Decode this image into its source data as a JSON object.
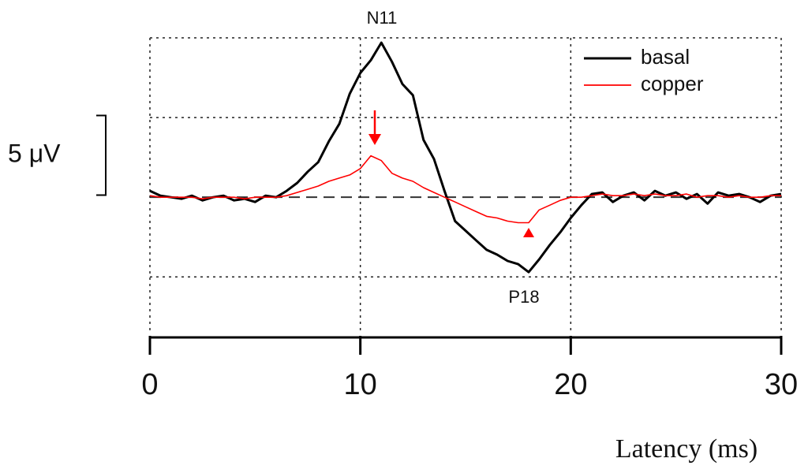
{
  "chart_data": {
    "type": "line",
    "x_label": "Latency (ms)",
    "xlim": [
      0,
      30
    ],
    "xticks": [
      0,
      10,
      20,
      30
    ],
    "ylim": [
      -8.4,
      10
    ],
    "y_gridlines": [
      -5,
      0,
      5,
      10
    ],
    "grid": true,
    "scale_bar": {
      "value": 5,
      "label": "5 μV"
    },
    "annotations": [
      "N11",
      "P18"
    ],
    "legend": "upper right",
    "x": [
      0,
      0.5,
      1,
      1.5,
      2,
      2.5,
      3,
      3.5,
      4,
      4.5,
      5,
      5.5,
      6,
      6.5,
      7,
      7.5,
      8,
      8.5,
      9,
      9.5,
      10,
      10.5,
      11,
      11.5,
      12,
      12.5,
      13,
      13.5,
      14,
      14.5,
      15,
      15.5,
      16,
      16.5,
      17,
      17.5,
      18,
      18.5,
      19,
      19.5,
      20,
      20.5,
      21,
      21.5,
      22,
      22.5,
      23,
      23.5,
      24,
      24.5,
      25,
      25.5,
      26,
      26.5,
      27,
      27.5,
      28,
      28.5,
      29,
      29.5,
      30
    ],
    "series": [
      {
        "name": "basal",
        "color": "#000000",
        "values": [
          0.4,
          0.1,
          0,
          -0.1,
          0.1,
          -0.2,
          0,
          0.1,
          -0.2,
          -0.1,
          -0.3,
          0.1,
          0,
          0.4,
          0.9,
          1.6,
          2.2,
          3.5,
          4.6,
          6.5,
          7.8,
          8.6,
          9.7,
          8.5,
          7.1,
          6.4,
          3.6,
          2.4,
          0.4,
          -1.5,
          -2.1,
          -2.7,
          -3.3,
          -3.6,
          -4.0,
          -4.2,
          -4.7,
          -3.9,
          -3.0,
          -2.2,
          -1.3,
          -0.5,
          0.2,
          0.3,
          -0.3,
          0.1,
          0.3,
          -0.2,
          0.4,
          0.1,
          0.3,
          -0.1,
          0.2,
          -0.4,
          0.3,
          0.1,
          0.2,
          0,
          -0.3,
          0.1,
          0.2
        ]
      },
      {
        "name": "copper",
        "color": "#ff0000",
        "values": [
          0.1,
          0,
          0,
          0,
          0,
          -0.1,
          0,
          0,
          0,
          -0.1,
          0,
          0,
          0,
          0.1,
          0.3,
          0.5,
          0.7,
          1.0,
          1.2,
          1.4,
          1.8,
          2.6,
          2.3,
          1.5,
          1.2,
          1.0,
          0.6,
          0.3,
          0,
          -0.3,
          -0.6,
          -0.9,
          -1.2,
          -1.3,
          -1.5,
          -1.6,
          -1.6,
          -0.8,
          -0.5,
          -0.2,
          0,
          0,
          0.1,
          0.2,
          0.1,
          0.1,
          0.2,
          0.1,
          0.2,
          0.1,
          0.1,
          0.2,
          0,
          0.1,
          0.1,
          0,
          0.1,
          0,
          0,
          0.1,
          0.1
        ]
      }
    ]
  }
}
